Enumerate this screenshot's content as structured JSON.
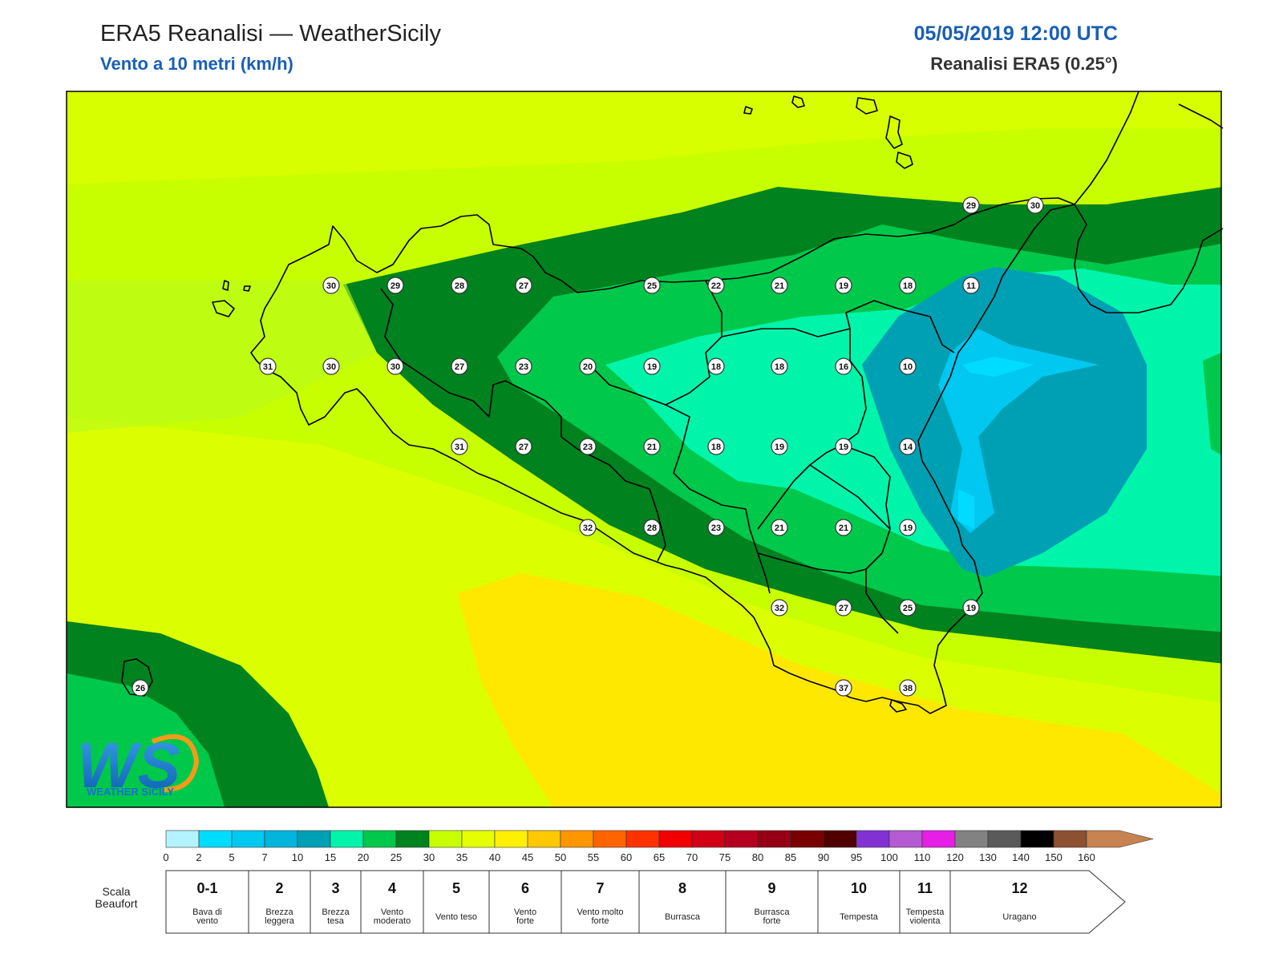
{
  "header": {
    "title": "ERA5 Reanalisi — WeatherSicily",
    "subtitle": "Vento a 10 metri (km/h)",
    "datetime": "05/05/2019 12:00 UTC",
    "dataset": "Reanalisi ERA5 (0.25°)"
  },
  "logo": {
    "text": "WS",
    "caption": "WEATHER SICILY"
  },
  "stations": [
    {
      "v": "29",
      "c": 1211,
      "r": 256
    },
    {
      "v": "30",
      "c": 1291,
      "r": 256
    },
    {
      "v": "30",
      "c": 413,
      "r": 356
    },
    {
      "v": "29",
      "c": 493,
      "r": 356
    },
    {
      "v": "28",
      "c": 573,
      "r": 356
    },
    {
      "v": "27",
      "c": 653,
      "r": 356
    },
    {
      "v": "25",
      "c": 813,
      "r": 356
    },
    {
      "v": "22",
      "c": 893,
      "r": 356
    },
    {
      "v": "21",
      "c": 972,
      "r": 356
    },
    {
      "v": "19",
      "c": 1052,
      "r": 356
    },
    {
      "v": "18",
      "c": 1132,
      "r": 356
    },
    {
      "v": "11",
      "c": 1211,
      "r": 356
    },
    {
      "v": "31",
      "c": 334,
      "r": 457
    },
    {
      "v": "30",
      "c": 413,
      "r": 457
    },
    {
      "v": "30",
      "c": 493,
      "r": 457
    },
    {
      "v": "27",
      "c": 573,
      "r": 457
    },
    {
      "v": "23",
      "c": 653,
      "r": 457
    },
    {
      "v": "20",
      "c": 733,
      "r": 457
    },
    {
      "v": "19",
      "c": 813,
      "r": 457
    },
    {
      "v": "18",
      "c": 893,
      "r": 457
    },
    {
      "v": "18",
      "c": 972,
      "r": 457
    },
    {
      "v": "16",
      "c": 1052,
      "r": 457
    },
    {
      "v": "10",
      "c": 1132,
      "r": 457
    },
    {
      "v": "31",
      "c": 573,
      "r": 557
    },
    {
      "v": "27",
      "c": 653,
      "r": 557
    },
    {
      "v": "23",
      "c": 733,
      "r": 557
    },
    {
      "v": "21",
      "c": 813,
      "r": 557
    },
    {
      "v": "18",
      "c": 893,
      "r": 557
    },
    {
      "v": "19",
      "c": 972,
      "r": 557
    },
    {
      "v": "19",
      "c": 1052,
      "r": 557
    },
    {
      "v": "14",
      "c": 1132,
      "r": 557
    },
    {
      "v": "32",
      "c": 733,
      "r": 658
    },
    {
      "v": "28",
      "c": 813,
      "r": 658
    },
    {
      "v": "23",
      "c": 893,
      "r": 658
    },
    {
      "v": "21",
      "c": 972,
      "r": 658
    },
    {
      "v": "21",
      "c": 1052,
      "r": 658
    },
    {
      "v": "19",
      "c": 1132,
      "r": 658
    },
    {
      "v": "32",
      "c": 972,
      "r": 758
    },
    {
      "v": "27",
      "c": 1052,
      "r": 758
    },
    {
      "v": "25",
      "c": 1132,
      "r": 758
    },
    {
      "v": "19",
      "c": 1211,
      "r": 758
    },
    {
      "v": "37",
      "c": 1052,
      "r": 858
    },
    {
      "v": "38",
      "c": 1132,
      "r": 858
    },
    {
      "v": "26",
      "c": 175,
      "r": 858
    }
  ],
  "colorbar": {
    "colors": [
      "#b3f3ff",
      "#00dcff",
      "#00c8f0",
      "#00b4dc",
      "#00a0b4",
      "#00f5aa",
      "#00c84b",
      "#00821e",
      "#c8ff00",
      "#e6ff00",
      "#fff000",
      "#ffc800",
      "#ff9600",
      "#ff6400",
      "#ff3200",
      "#f00000",
      "#d20014",
      "#b4001e",
      "#960014",
      "#780000",
      "#500000",
      "#8232d2",
      "#b45ad2",
      "#e61ee6",
      "#828282",
      "#5a5a5a",
      "#000000",
      "#8c5032",
      "#c88250"
    ],
    "ticks": [
      "0",
      "2",
      "5",
      "7",
      "10",
      "15",
      "20",
      "25",
      "30",
      "35",
      "40",
      "45",
      "50",
      "55",
      "60",
      "65",
      "70",
      "75",
      "80",
      "85",
      "90",
      "95",
      "100",
      "110",
      "120",
      "130",
      "140",
      "150",
      "160"
    ]
  },
  "beaufort": {
    "label_line1": "Scala",
    "label_line2": "Beaufort",
    "levels": [
      {
        "num": "0-1",
        "l1": "Bava di",
        "l2": "vento"
      },
      {
        "num": "2",
        "l1": "Brezza",
        "l2": "leggera"
      },
      {
        "num": "3",
        "l1": "Brezza",
        "l2": "tesa"
      },
      {
        "num": "4",
        "l1": "Vento",
        "l2": "moderato"
      },
      {
        "num": "5",
        "l1": "Vento teso",
        "l2": ""
      },
      {
        "num": "6",
        "l1": "Vento",
        "l2": "forte"
      },
      {
        "num": "7",
        "l1": "Vento molto",
        "l2": "forte"
      },
      {
        "num": "8",
        "l1": "Burrasca",
        "l2": ""
      },
      {
        "num": "9",
        "l1": "Burrasca",
        "l2": "forte"
      },
      {
        "num": "10",
        "l1": "Tempesta",
        "l2": ""
      },
      {
        "num": "11",
        "l1": "Tempesta",
        "l2": "violenta"
      },
      {
        "num": "12",
        "l1": "Uragano",
        "l2": ""
      }
    ]
  }
}
